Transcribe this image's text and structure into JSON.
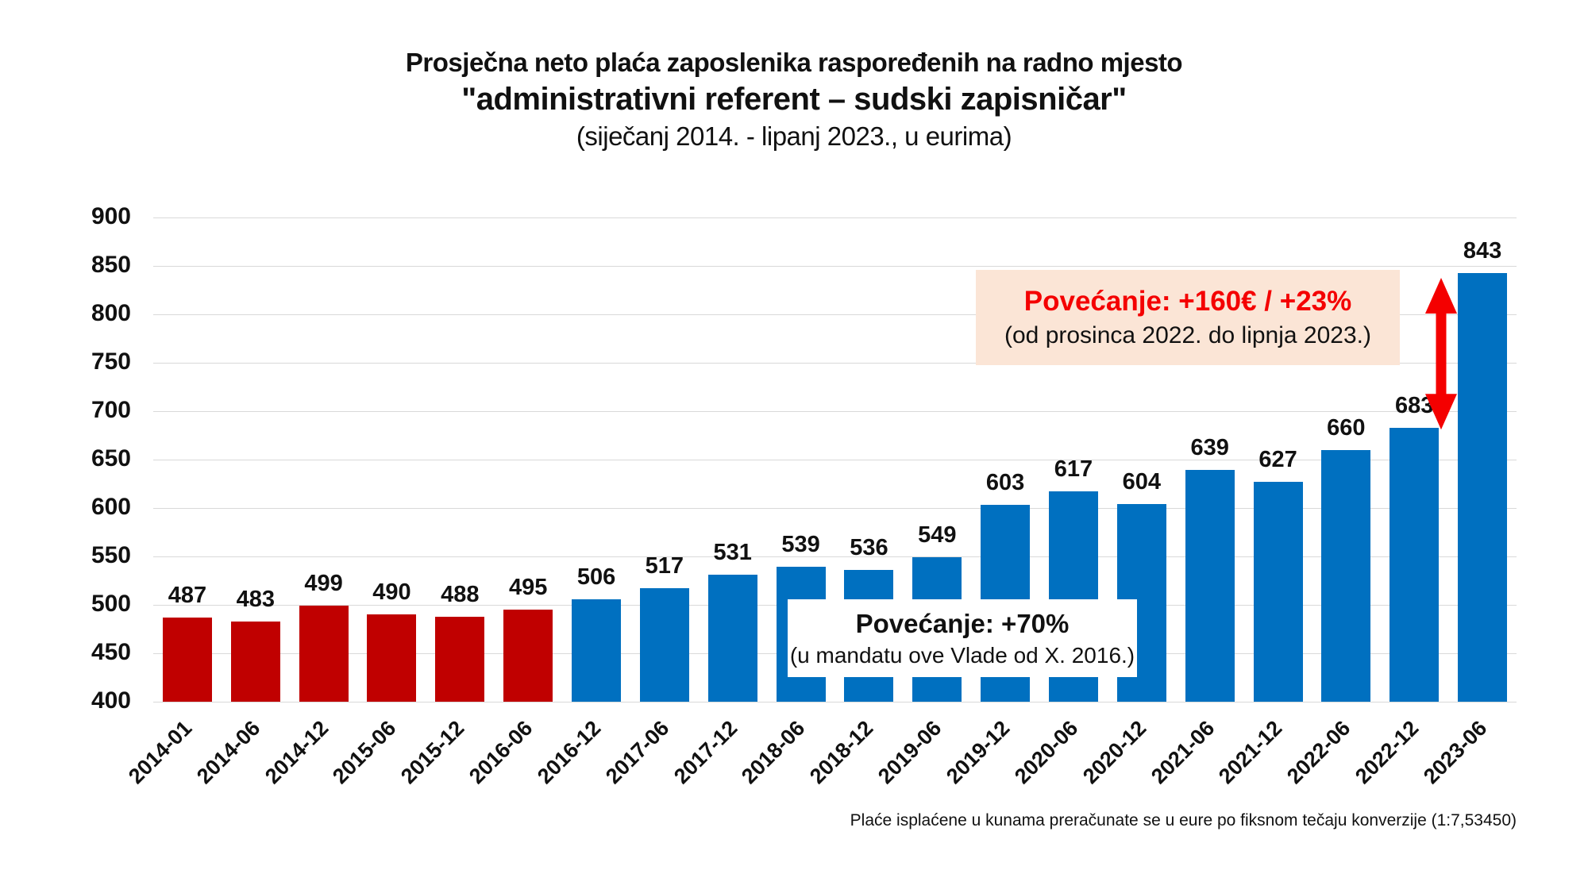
{
  "title": {
    "line1": "Prosječna neto plaća zaposlenika raspoređenih na radno mjesto",
    "line2": "\"administrativni referent – sudski zapisničar\"",
    "line3": "(siječanj 2014. - lipanj 2023., u eurima)"
  },
  "chart_data": {
    "type": "bar",
    "title": "Prosječna neto plaća zaposlenika raspoređenih na radno mjesto \"administrativni referent – sudski zapisničar\" (siječanj 2014. - lipanj 2023., u eurima)",
    "categories": [
      "2014-01",
      "2014-06",
      "2014-12",
      "2015-06",
      "2015-12",
      "2016-06",
      "2016-12",
      "2017-06",
      "2017-12",
      "2018-06",
      "2018-12",
      "2019-06",
      "2019-12",
      "2020-06",
      "2020-12",
      "2021-06",
      "2021-12",
      "2022-06",
      "2022-12",
      "2023-06"
    ],
    "values": [
      487,
      483,
      499,
      490,
      488,
      495,
      506,
      517,
      531,
      539,
      536,
      549,
      603,
      617,
      604,
      639,
      627,
      660,
      683,
      843
    ],
    "bar_colors": [
      "#c00000",
      "#c00000",
      "#c00000",
      "#c00000",
      "#c00000",
      "#c00000",
      "#0070c0",
      "#0070c0",
      "#0070c0",
      "#0070c0",
      "#0070c0",
      "#0070c0",
      "#0070c0",
      "#0070c0",
      "#0070c0",
      "#0070c0",
      "#0070c0",
      "#0070c0",
      "#0070c0",
      "#0070c0"
    ],
    "xlabel": "",
    "ylabel": "",
    "ylim": [
      400,
      900
    ],
    "yticks": [
      900,
      850,
      800,
      750,
      700,
      650,
      600,
      550,
      500,
      450,
      400
    ],
    "grid": true,
    "legend": "none",
    "data_labels": true
  },
  "annotations": {
    "increase_recent": {
      "line1": "Povećanje: +160€ / +23%",
      "line2": "(od prosinca 2022. do lipnja 2023.)",
      "bg_color": "#fbe5d6",
      "accent_color": "#f40000"
    },
    "increase_mandate": {
      "line1": "Povećanje: +70%",
      "line2": "(u mandatu ove Vlade od X. 2016.)"
    },
    "arrow": {
      "from_value": 683,
      "to_value": 843,
      "color": "#f40000"
    }
  },
  "footer": {
    "note": "Plaće isplaćene u kunama preračunate se u eure po fiksnom tečaju konverzije (1:7,53450)"
  },
  "colors": {
    "red_bars": "#c00000",
    "blue_bars": "#0070c0",
    "gridline": "#d9d9d9"
  }
}
